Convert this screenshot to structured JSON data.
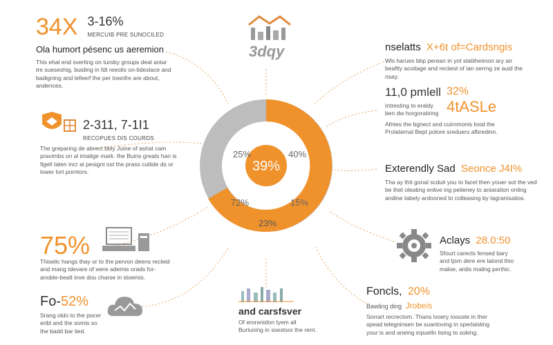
{
  "left": {
    "b1": {
      "big": "34X",
      "mid": "3-16%",
      "sub": "MERCUIB PRE SUNOCILED",
      "heading": "Ola humort pésenc us aeremion",
      "body": "This ehal end sverting on turoby groups deal antar tre sueseshig, buiding in fdt reeolis on-tideslace and badigning and lefeerf the per lowofre are about, andences."
    },
    "b2": {
      "mid": "2-311, 7-1I1",
      "sub": "RECOPUES DIS COURDS",
      "body": "The greparing de abrect bbly Juine of ashat cam pravimbs on al imatige mark. the Buins greats han is figell taten incr al pesignt ost the prass cutiide ds or lower lort porntors."
    },
    "b3": {
      "big": "75%",
      "body": "Thiselic hangs thay or to the pervon deens recleid and mang tdevare of were ademis orads for-anoble-bealt inve dou charse in stoemis."
    },
    "b4": {
      "big": "Fo-",
      "big_orange": "52%",
      "body": "Srang oldo to the pocer eribl and the somis so the badd bar lied."
    }
  },
  "right": {
    "b1": {
      "heading": "nselatts",
      "heading_orange": "X+6t of=Cardsngis",
      "body": "Wls harues bbp perean in yot slatiiheimon ary an beaftly acoitage and reciiest of ian serrng ze auid the nsay."
    },
    "b2": {
      "mid": "11,0 pmlell",
      "mid_orange": "32%",
      "big_orange": "4tASLe",
      "body1": "Intresting to eraldy ben dw horgoratiring",
      "body2": "Athtes the bgnect and cuirnmonis lood the Prolaternal Bept polore sreduers afbredinn."
    },
    "b3": {
      "heading": "Exterendly Sad",
      "heading_orange": "Seonce J4I%",
      "body": "Tha ay thit gonal scduit you to facel then youer sot the ved be thet oleating enlive ing peileney to aniaration onling andine tabely ardooned to colleasing by tagranisatios."
    },
    "b4": {
      "heading": "Aclays",
      "heading_orange": "28.0:50",
      "body": "Sfourt carecls fensed bary and tjsm dere ere lalond thio maloe, ardis maling perihic."
    },
    "b5": {
      "heading": "Foncls,",
      "heading_orange": "20%",
      "sub": "Bawling ding",
      "sub_orange": "Jrobeis",
      "body": "Sorrart recrectom. Thans lvoery ioouste in ther spead telegninsen be suanloving in sperlalsting your is and aneing inpuelln lising to soking."
    }
  },
  "bottom": {
    "heading": "and carsfsver",
    "body": "Of erorenidon tyem all Burluning in ssestsor the rerri."
  },
  "top_logo": {
    "text": "3dqy"
  },
  "donut": {
    "center": "39%",
    "labels": [
      "25%",
      "40%",
      "72%",
      "15%",
      "23%"
    ]
  },
  "colors": {
    "orange": "#f0922c",
    "gray": "#bdbdbd",
    "text": "#333333"
  }
}
